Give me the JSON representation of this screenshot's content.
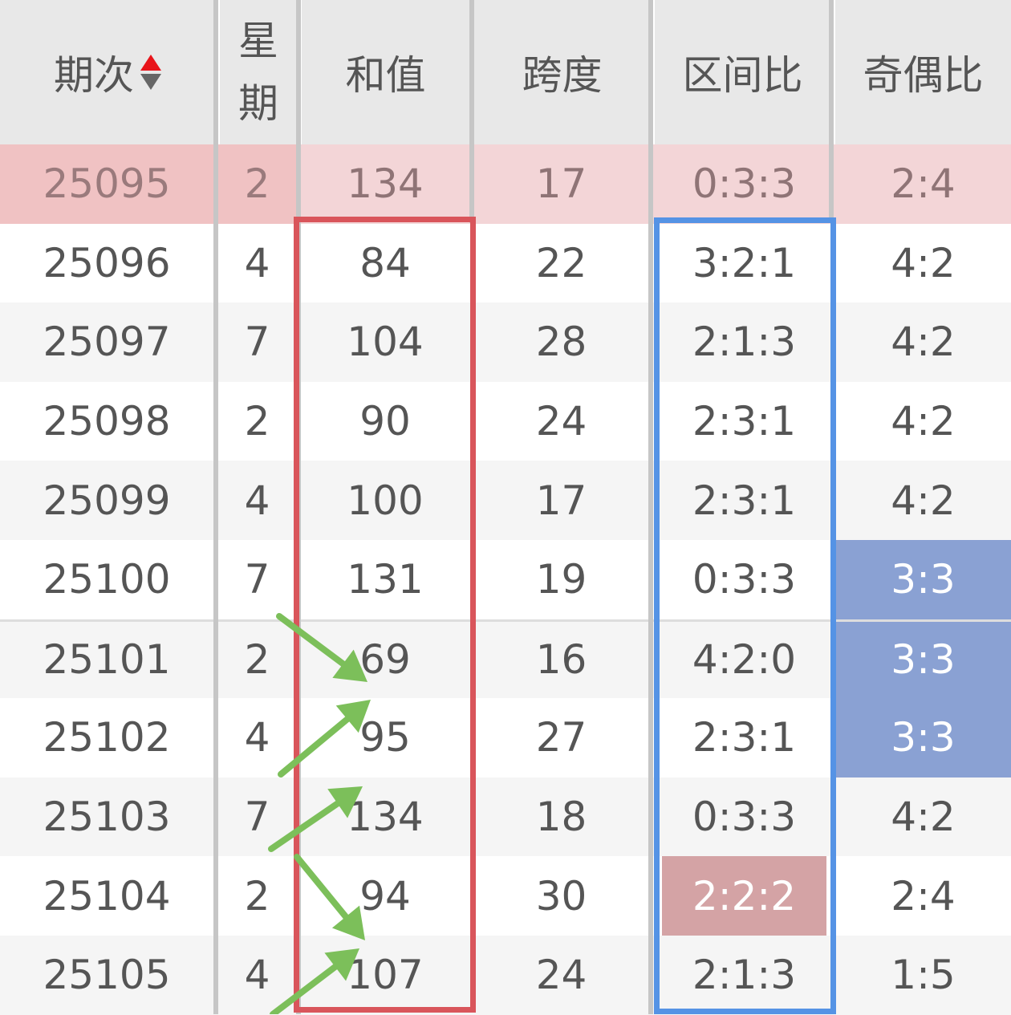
{
  "headers": [
    "期次",
    "星期",
    "和值",
    "跨度",
    "区间比",
    "奇偶比"
  ],
  "header_weekday_lines": [
    "星",
    "期"
  ],
  "sort_icon": "sort-up-down-icon",
  "rows": [
    {
      "issue": "25095",
      "weekday": "2",
      "sum": "134",
      "span": "17",
      "zone": "0:3:3",
      "parity": "2:4",
      "highlight": "latest"
    },
    {
      "issue": "25096",
      "weekday": "4",
      "sum": "84",
      "span": "22",
      "zone": "3:2:1",
      "parity": "4:2"
    },
    {
      "issue": "25097",
      "weekday": "7",
      "sum": "104",
      "span": "28",
      "zone": "2:1:3",
      "parity": "4:2"
    },
    {
      "issue": "25098",
      "weekday": "2",
      "sum": "90",
      "span": "24",
      "zone": "2:3:1",
      "parity": "4:2"
    },
    {
      "issue": "25099",
      "weekday": "4",
      "sum": "100",
      "span": "17",
      "zone": "2:3:1",
      "parity": "4:2"
    },
    {
      "issue": "25100",
      "weekday": "7",
      "sum": "131",
      "span": "19",
      "zone": "0:3:3",
      "parity": "3:3",
      "parity_highlight": true
    },
    {
      "issue": "25101",
      "weekday": "2",
      "sum": "69",
      "span": "16",
      "zone": "4:2:0",
      "parity": "3:3",
      "parity_highlight": true
    },
    {
      "issue": "25102",
      "weekday": "4",
      "sum": "95",
      "span": "27",
      "zone": "2:3:1",
      "parity": "3:3",
      "parity_highlight": true
    },
    {
      "issue": "25103",
      "weekday": "7",
      "sum": "134",
      "span": "18",
      "zone": "0:3:3",
      "parity": "4:2"
    },
    {
      "issue": "25104",
      "weekday": "2",
      "sum": "94",
      "span": "30",
      "zone": "2:2:2",
      "parity": "2:4",
      "zone_highlight": true
    },
    {
      "issue": "25105",
      "weekday": "4",
      "sum": "107",
      "span": "24",
      "zone": "2:1:3",
      "parity": "1:5"
    }
  ],
  "colors": {
    "header_bg": "#e8e8e8",
    "latest_row_strong": "#f0c2c3",
    "latest_row_light": "#f3d5d7",
    "alt_row": "#f5f5f5",
    "parity_highlight": "#8aa1d3",
    "zone_highlight": "#d4a3a5",
    "sum_box": "#d9555b",
    "zone_box": "#5593e5",
    "arrows": "#7cbf5a"
  }
}
